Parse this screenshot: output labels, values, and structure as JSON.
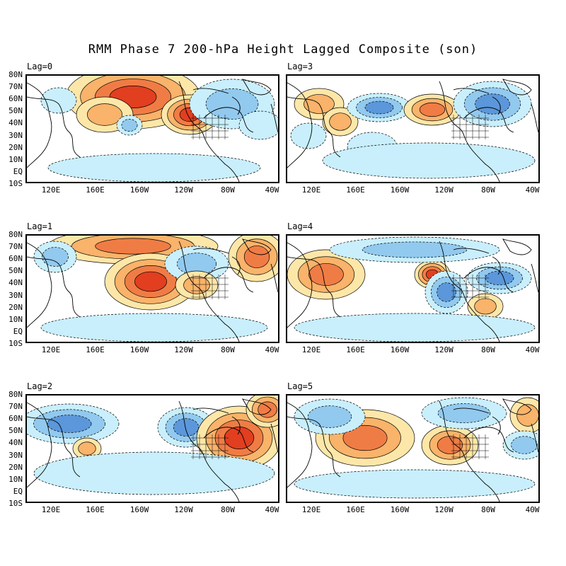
{
  "title": "RMM Phase 7 200-hPa Height Lagged Composite (son)",
  "lat_labels": [
    "80N",
    "70N",
    "60N",
    "50N",
    "40N",
    "30N",
    "20N",
    "10N",
    "EQ",
    "10S"
  ],
  "lon_labels": [
    "120E",
    "160E",
    "160W",
    "120W",
    "80W",
    "40W"
  ],
  "colors": {
    "pos1": "#fde7a8",
    "pos2": "#f9b36a",
    "pos3": "#f07c45",
    "pos4": "#e23e20",
    "neg1": "#c9effc",
    "neg2": "#92c9ee",
    "neg3": "#5b97da",
    "land": "#000000"
  },
  "panels": [
    {
      "id": "lag0",
      "label": "Lag=0"
    },
    {
      "id": "lag3",
      "label": "Lag=3"
    },
    {
      "id": "lag1",
      "label": "Lag=1"
    },
    {
      "id": "lag4",
      "label": "Lag=4"
    },
    {
      "id": "lag2",
      "label": "Lag=2"
    },
    {
      "id": "lag5",
      "label": "Lag=5"
    }
  ]
}
